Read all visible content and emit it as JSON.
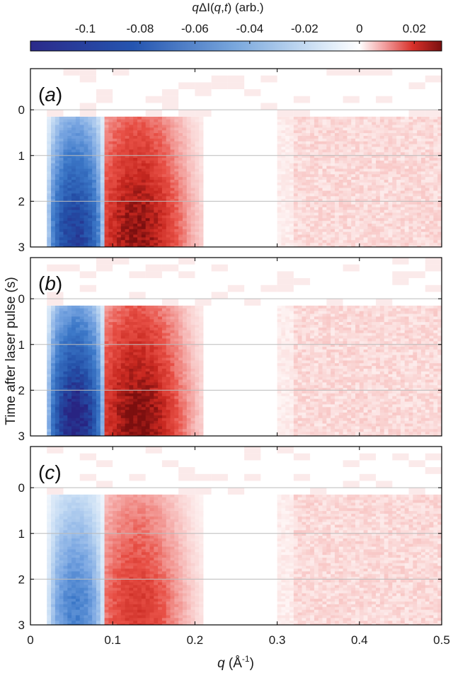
{
  "chart_data": {
    "type": "heatmap",
    "colorbar": {
      "label_prefix": "q",
      "label_mid": "ΔI(",
      "label_q": "q",
      "label_sep": ",",
      "label_t": "t",
      "label_suffix": ") (arb.)",
      "range": [
        -0.12,
        0.03
      ],
      "ticks": [
        -0.1,
        -0.08,
        -0.06,
        -0.04,
        -0.02,
        0,
        0.02
      ],
      "tick_labels": [
        "-0.1",
        "-0.08",
        "-0.06",
        "-0.04",
        "-0.02",
        "0",
        "0.02"
      ],
      "colors": {
        "negative": "#2a3a9a",
        "zero": "#ffffff",
        "positive": "#8b1010"
      }
    },
    "xlabel_q": "q",
    "xlabel_unit": " (Å",
    "xlabel_exp": "-1",
    "xlabel_close": ")",
    "ylabel": "Time after laser pulse (s)",
    "xlim": [
      0,
      0.5
    ],
    "ylim": [
      -0.9,
      3
    ],
    "x_ticks": [
      "0",
      "0.1",
      "0.2",
      "0.3",
      "0.4",
      "0.5"
    ],
    "y_ticks": [
      "0",
      "1",
      "2",
      "3"
    ],
    "y_reversed": true,
    "grid": "horizontal",
    "panels": [
      {
        "label_open": "(",
        "label_letter": "a",
        "label_close": ")",
        "neg_min": -0.1,
        "pos_max": 0.028,
        "neg_band": [
          0.02,
          0.09
        ],
        "pos_band": [
          0.09,
          0.21
        ],
        "onset": 0.15
      },
      {
        "label_open": "(",
        "label_letter": "b",
        "label_close": ")",
        "neg_min": -0.12,
        "pos_max": 0.03,
        "neg_band": [
          0.02,
          0.09
        ],
        "pos_band": [
          0.09,
          0.21
        ],
        "onset": 0.15
      },
      {
        "label_open": "(",
        "label_letter": "c",
        "label_close": ")",
        "neg_min": -0.055,
        "pos_max": 0.018,
        "neg_band": [
          0.02,
          0.09
        ],
        "pos_band": [
          0.09,
          0.21
        ],
        "onset": 0.15
      }
    ]
  }
}
